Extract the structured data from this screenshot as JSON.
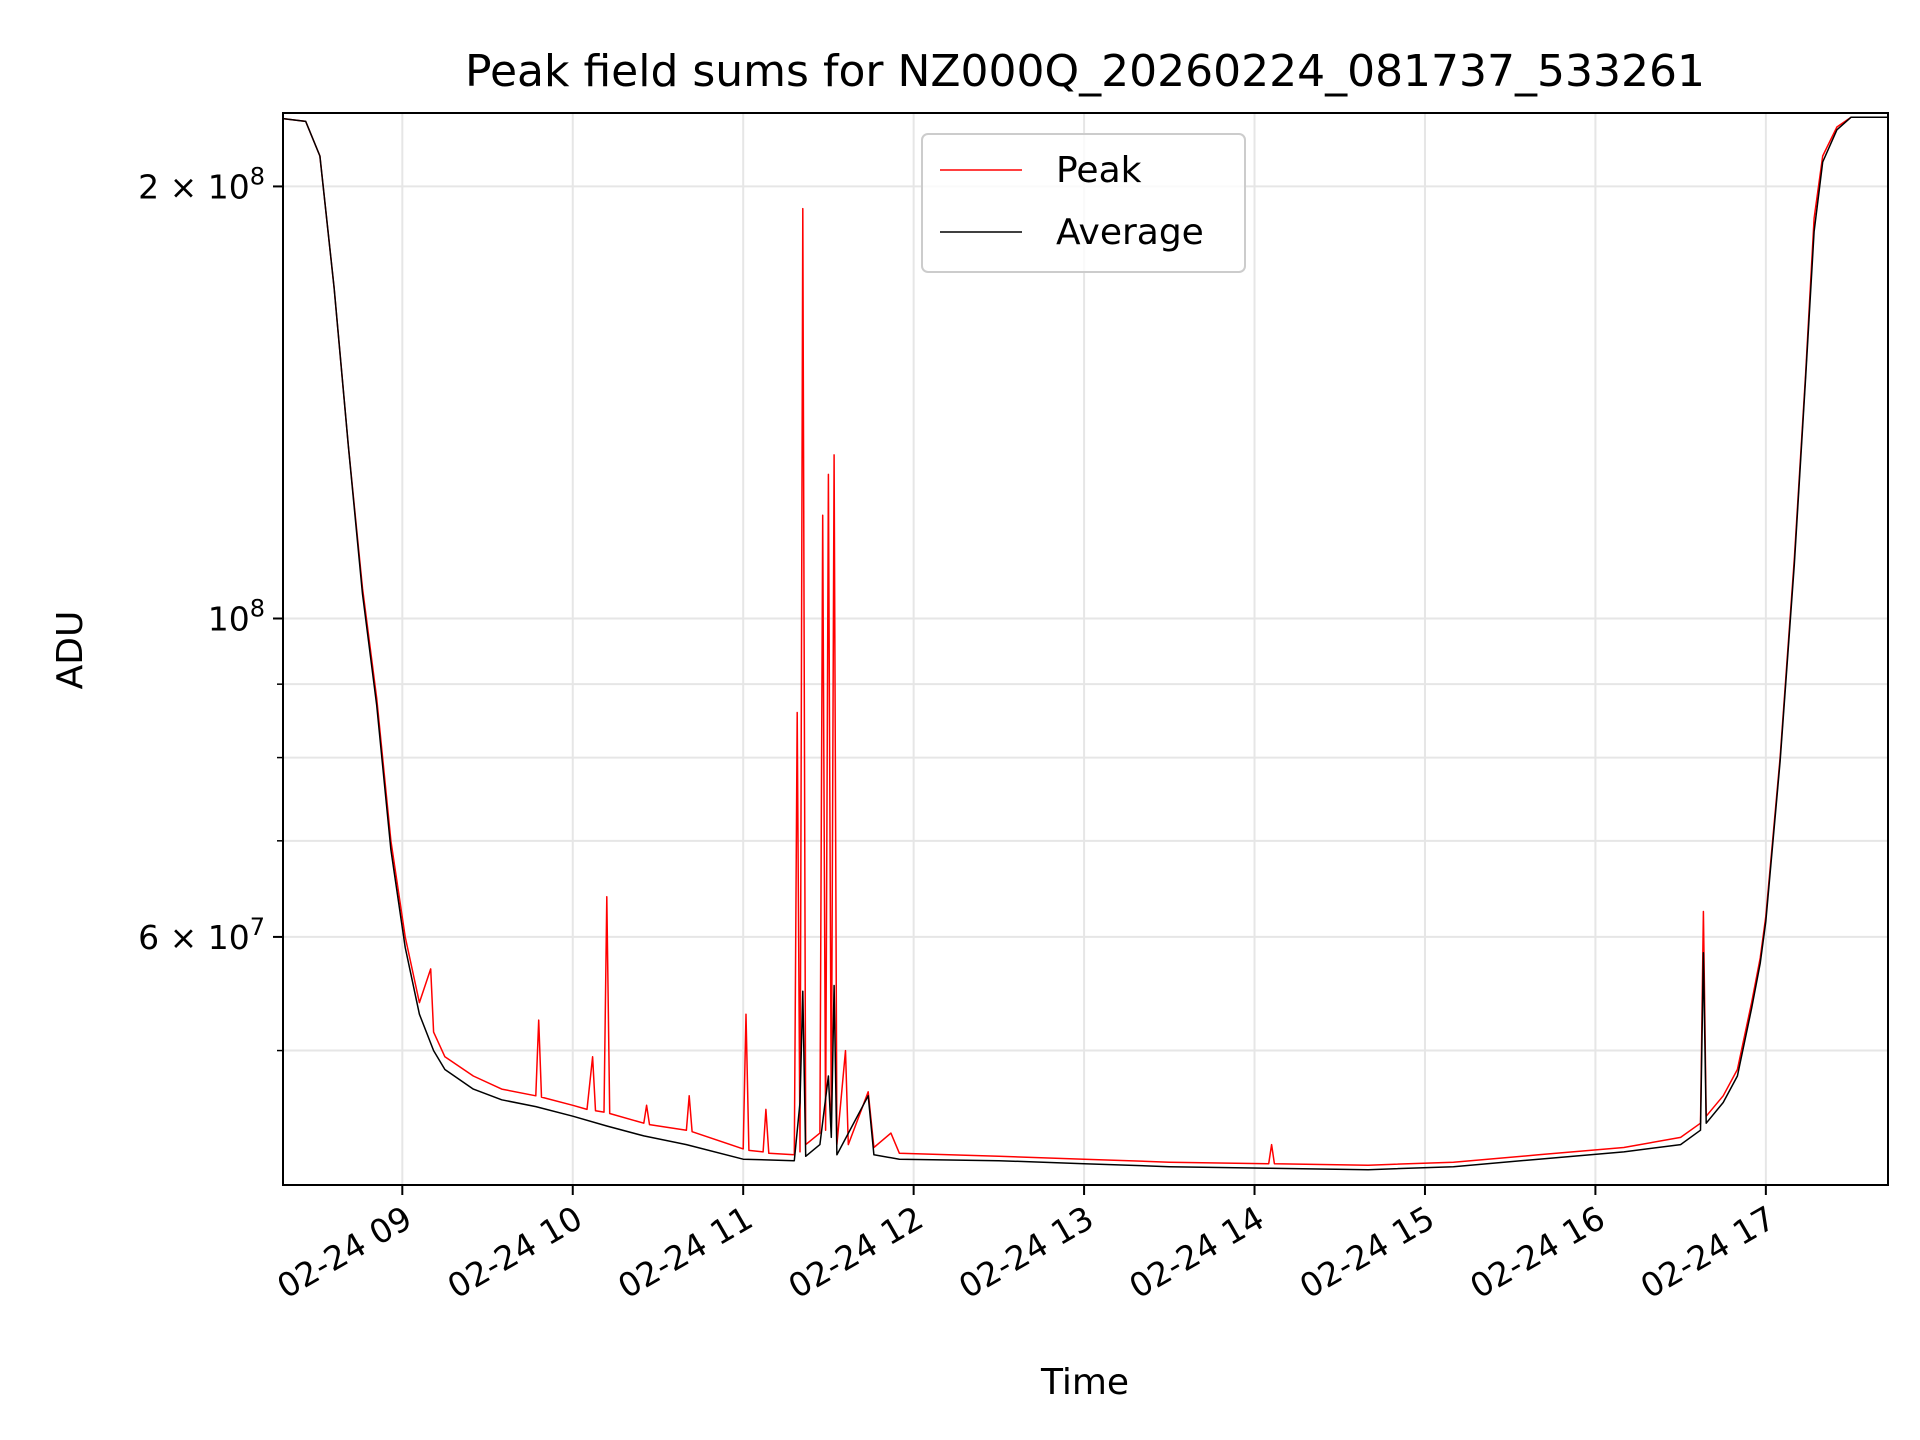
{
  "chart_data": {
    "type": "line",
    "title": "Peak field sums for NZ000Q_20260224_081737_533261",
    "xlabel": "Time",
    "ylabel": "ADU",
    "x_scale": "time",
    "y_scale": "log",
    "xlim": [
      "2026-02-24 08:18",
      "2026-02-24 17:43"
    ],
    "ylim": [
      40300000,
      225000000
    ],
    "x_ticks": [
      {
        "value": "2026-02-24 09:00",
        "label": "02-24 09"
      },
      {
        "value": "2026-02-24 10:00",
        "label": "02-24 10"
      },
      {
        "value": "2026-02-24 11:00",
        "label": "02-24 11"
      },
      {
        "value": "2026-02-24 12:00",
        "label": "02-24 12"
      },
      {
        "value": "2026-02-24 13:00",
        "label": "02-24 13"
      },
      {
        "value": "2026-02-24 14:00",
        "label": "02-24 14"
      },
      {
        "value": "2026-02-24 15:00",
        "label": "02-24 15"
      },
      {
        "value": "2026-02-24 16:00",
        "label": "02-24 16"
      },
      {
        "value": "2026-02-24 17:00",
        "label": "02-24 17"
      }
    ],
    "y_major_ticks": [
      {
        "value": 60000000,
        "label_base": "6 × 10",
        "label_exp": "7"
      },
      {
        "value": 100000000,
        "label_base": "10",
        "label_exp": "8"
      },
      {
        "value": 200000000,
        "label_base": "2 × 10",
        "label_exp": "8"
      }
    ],
    "y_minor_ticks": [
      50000000,
      70000000,
      80000000,
      90000000
    ],
    "grid": true,
    "legend_position": "upper-center",
    "series": [
      {
        "name": "Peak",
        "color": "#ff0000",
        "points": [
          [
            "2026-02-24 08:18",
            223000000
          ],
          [
            "2026-02-24 08:26",
            222000000
          ],
          [
            "2026-02-24 08:31",
            210000000
          ],
          [
            "2026-02-24 08:36",
            170000000
          ],
          [
            "2026-02-24 08:41",
            132000000
          ],
          [
            "2026-02-24 08:46",
            105000000
          ],
          [
            "2026-02-24 08:51",
            88000000
          ],
          [
            "2026-02-24 08:56",
            70000000
          ],
          [
            "2026-02-24 09:01",
            60000000
          ],
          [
            "2026-02-24 09:06",
            54000000
          ],
          [
            "2026-02-24 09:10",
            57000000
          ],
          [
            "2026-02-24 09:11",
            51500000
          ],
          [
            "2026-02-24 09:15",
            49500000
          ],
          [
            "2026-02-24 09:25",
            48000000
          ],
          [
            "2026-02-24 09:35",
            47000000
          ],
          [
            "2026-02-24 09:47",
            46500000
          ],
          [
            "2026-02-24 09:48",
            52500000
          ],
          [
            "2026-02-24 09:49",
            46400000
          ],
          [
            "2026-02-24 10:00",
            45800000
          ],
          [
            "2026-02-24 10:05",
            45500000
          ],
          [
            "2026-02-24 10:07",
            49500000
          ],
          [
            "2026-02-24 10:08",
            45400000
          ],
          [
            "2026-02-24 10:11",
            45300000
          ],
          [
            "2026-02-24 10:12",
            64000000
          ],
          [
            "2026-02-24 10:13",
            45200000
          ],
          [
            "2026-02-24 10:25",
            44500000
          ],
          [
            "2026-02-24 10:26",
            45800000
          ],
          [
            "2026-02-24 10:27",
            44400000
          ],
          [
            "2026-02-24 10:40",
            44000000
          ],
          [
            "2026-02-24 10:41",
            46500000
          ],
          [
            "2026-02-24 10:42",
            43900000
          ],
          [
            "2026-02-24 11:00",
            42700000
          ],
          [
            "2026-02-24 11:01",
            53000000
          ],
          [
            "2026-02-24 11:02",
            42600000
          ],
          [
            "2026-02-24 11:07",
            42500000
          ],
          [
            "2026-02-24 11:08",
            45500000
          ],
          [
            "2026-02-24 11:09",
            42400000
          ],
          [
            "2026-02-24 11:18",
            42300000
          ],
          [
            "2026-02-24 11:19",
            86000000
          ],
          [
            "2026-02-24 11:20",
            42500000
          ],
          [
            "2026-02-24 11:21",
            193000000
          ],
          [
            "2026-02-24 11:22",
            43000000
          ],
          [
            "2026-02-24 11:27",
            43800000
          ],
          [
            "2026-02-24 11:28",
            118000000
          ],
          [
            "2026-02-24 11:29",
            44000000
          ],
          [
            "2026-02-24 11:30",
            126000000
          ],
          [
            "2026-02-24 11:31",
            44500000
          ],
          [
            "2026-02-24 11:32",
            130000000
          ],
          [
            "2026-02-24 11:33",
            43000000
          ],
          [
            "2026-02-24 11:36",
            50000000
          ],
          [
            "2026-02-24 11:37",
            43000000
          ],
          [
            "2026-02-24 11:44",
            46800000
          ],
          [
            "2026-02-24 11:46",
            42800000
          ],
          [
            "2026-02-24 11:52",
            43800000
          ],
          [
            "2026-02-24 11:55",
            42400000
          ],
          [
            "2026-02-24 12:30",
            42200000
          ],
          [
            "2026-02-24 13:00",
            42000000
          ],
          [
            "2026-02-24 13:30",
            41800000
          ],
          [
            "2026-02-24 14:05",
            41700000
          ],
          [
            "2026-02-24 14:06",
            43000000
          ],
          [
            "2026-02-24 14:07",
            41700000
          ],
          [
            "2026-02-24 14:40",
            41600000
          ],
          [
            "2026-02-24 15:10",
            41800000
          ],
          [
            "2026-02-24 15:40",
            42300000
          ],
          [
            "2026-02-24 16:10",
            42800000
          ],
          [
            "2026-02-24 16:30",
            43500000
          ],
          [
            "2026-02-24 16:37",
            44500000
          ],
          [
            "2026-02-24 16:38",
            62500000
          ],
          [
            "2026-02-24 16:39",
            45000000
          ],
          [
            "2026-02-24 16:45",
            46500000
          ],
          [
            "2026-02-24 16:50",
            48500000
          ],
          [
            "2026-02-24 16:55",
            54000000
          ],
          [
            "2026-02-24 16:58",
            58000000
          ],
          [
            "2026-02-24 17:00",
            62000000
          ],
          [
            "2026-02-24 17:05",
            80000000
          ],
          [
            "2026-02-24 17:10",
            110000000
          ],
          [
            "2026-02-24 17:14",
            148000000
          ],
          [
            "2026-02-24 17:17",
            190000000
          ],
          [
            "2026-02-24 17:20",
            210000000
          ],
          [
            "2026-02-24 17:25",
            220000000
          ],
          [
            "2026-02-24 17:30",
            223500000
          ],
          [
            "2026-02-24 17:43",
            223500000
          ]
        ]
      },
      {
        "name": "Average",
        "color": "#000000",
        "points": [
          [
            "2026-02-24 08:18",
            223000000
          ],
          [
            "2026-02-24 08:26",
            222000000
          ],
          [
            "2026-02-24 08:31",
            210000000
          ],
          [
            "2026-02-24 08:36",
            170000000
          ],
          [
            "2026-02-24 08:41",
            132000000
          ],
          [
            "2026-02-24 08:46",
            104000000
          ],
          [
            "2026-02-24 08:51",
            87000000
          ],
          [
            "2026-02-24 08:56",
            69000000
          ],
          [
            "2026-02-24 09:01",
            59000000
          ],
          [
            "2026-02-24 09:06",
            53000000
          ],
          [
            "2026-02-24 09:11",
            50000000
          ],
          [
            "2026-02-24 09:15",
            48500000
          ],
          [
            "2026-02-24 09:25",
            47000000
          ],
          [
            "2026-02-24 09:35",
            46200000
          ],
          [
            "2026-02-24 09:47",
            45700000
          ],
          [
            "2026-02-24 10:00",
            45000000
          ],
          [
            "2026-02-24 10:12",
            44300000
          ],
          [
            "2026-02-24 10:25",
            43600000
          ],
          [
            "2026-02-24 10:40",
            43000000
          ],
          [
            "2026-02-24 11:00",
            42000000
          ],
          [
            "2026-02-24 11:18",
            41900000
          ],
          [
            "2026-02-24 11:20",
            46000000
          ],
          [
            "2026-02-24 11:21",
            55000000
          ],
          [
            "2026-02-24 11:22",
            42200000
          ],
          [
            "2026-02-24 11:27",
            43000000
          ],
          [
            "2026-02-24 11:30",
            48000000
          ],
          [
            "2026-02-24 11:31",
            43500000
          ],
          [
            "2026-02-24 11:32",
            55500000
          ],
          [
            "2026-02-24 11:33",
            42300000
          ],
          [
            "2026-02-24 11:44",
            46500000
          ],
          [
            "2026-02-24 11:46",
            42300000
          ],
          [
            "2026-02-24 11:55",
            42000000
          ],
          [
            "2026-02-24 12:30",
            41900000
          ],
          [
            "2026-02-24 13:00",
            41700000
          ],
          [
            "2026-02-24 13:30",
            41500000
          ],
          [
            "2026-02-24 14:05",
            41400000
          ],
          [
            "2026-02-24 14:40",
            41300000
          ],
          [
            "2026-02-24 15:10",
            41500000
          ],
          [
            "2026-02-24 15:40",
            42000000
          ],
          [
            "2026-02-24 16:10",
            42500000
          ],
          [
            "2026-02-24 16:30",
            43000000
          ],
          [
            "2026-02-24 16:37",
            44000000
          ],
          [
            "2026-02-24 16:38",
            58500000
          ],
          [
            "2026-02-24 16:39",
            44500000
          ],
          [
            "2026-02-24 16:45",
            46000000
          ],
          [
            "2026-02-24 16:50",
            48000000
          ],
          [
            "2026-02-24 16:55",
            53500000
          ],
          [
            "2026-02-24 16:58",
            57500000
          ],
          [
            "2026-02-24 17:00",
            61500000
          ],
          [
            "2026-02-24 17:05",
            79500000
          ],
          [
            "2026-02-24 17:10",
            109000000
          ],
          [
            "2026-02-24 17:14",
            147000000
          ],
          [
            "2026-02-24 17:17",
            186000000
          ],
          [
            "2026-02-24 17:20",
            208000000
          ],
          [
            "2026-02-24 17:25",
            219000000
          ],
          [
            "2026-02-24 17:30",
            223500000
          ],
          [
            "2026-02-24 17:43",
            223500000
          ]
        ]
      }
    ]
  }
}
